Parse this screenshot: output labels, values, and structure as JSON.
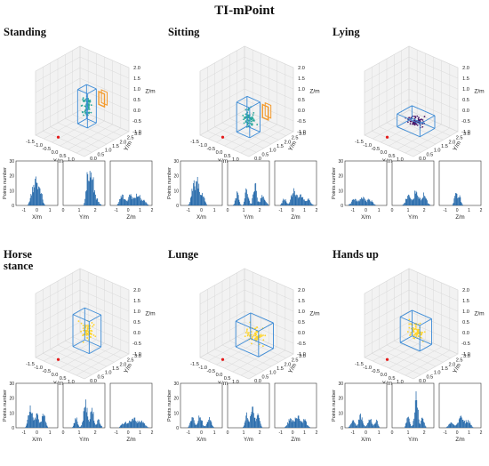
{
  "figure": {
    "title": "TI-mPoint"
  },
  "colors": {
    "person_box": "#3a8ad6",
    "sensor_box": "#f39a2c",
    "sensor": "#e51b1b",
    "histogram": "#1f65a8"
  },
  "axes_3d": {
    "xlabel": "X/m",
    "ylabel": "Y/m",
    "zlabel": "Z/m",
    "x_ticks": [
      "-1.5",
      "-1.0",
      "-0.5",
      "0.0",
      "0.5",
      "1.0",
      "1.5"
    ],
    "y_ticks": [
      "0.0",
      "0.5",
      "1.0",
      "1.5",
      "2.0",
      "2.5",
      "3.0"
    ],
    "z_ticks": [
      "-1.0",
      "-0.5",
      "0.0",
      "0.5",
      "1.0",
      "1.5",
      "2.0"
    ],
    "xlim": [
      -1.5,
      1.5
    ],
    "ylim": [
      0,
      3
    ],
    "zlim": [
      -1,
      2
    ]
  },
  "hist_axes": {
    "ylabel": "Points number",
    "ylim": [
      0,
      30
    ],
    "y_ticks": [
      "0",
      "10",
      "20",
      "30"
    ],
    "xlabels": [
      "X/m",
      "Y/m",
      "Z/m"
    ],
    "x_ticks": [
      [
        "-1",
        "0",
        "1"
      ],
      [
        "0",
        "1",
        "2"
      ],
      [
        "-1",
        "0",
        "1",
        "2"
      ]
    ],
    "x_tick_values": [
      [
        -1,
        0,
        1
      ],
      [
        0,
        1,
        2
      ],
      [
        -1,
        0,
        1,
        2
      ]
    ],
    "xlims": [
      [
        -1.6,
        1.6
      ],
      [
        0,
        2.6
      ],
      [
        -1.5,
        2
      ]
    ]
  },
  "chart_data": [
    {
      "type": "scatter",
      "title": "Standing",
      "point_color": "#26a69a",
      "body": {
        "center": [
          0.2,
          1.6,
          0.3
        ],
        "size": [
          0.6,
          0.6,
          1.6
        ]
      },
      "sensor_box": true,
      "hist": [
        {
          "peaks": [
            {
              "c": -0.35,
              "w": 0.15,
              "h": 12
            },
            {
              "c": -0.05,
              "w": 0.12,
              "h": 22
            },
            {
              "c": 0.25,
              "w": 0.15,
              "h": 14
            }
          ]
        },
        {
          "peaks": [
            {
              "c": 1.55,
              "w": 0.1,
              "h": 28
            },
            {
              "c": 1.8,
              "w": 0.1,
              "h": 24
            },
            {
              "c": 2.05,
              "w": 0.15,
              "h": 6
            }
          ]
        },
        {
          "peaks": [
            {
              "c": -0.5,
              "w": 0.2,
              "h": 8
            },
            {
              "c": 0.2,
              "w": 0.2,
              "h": 9
            },
            {
              "c": 0.8,
              "w": 0.2,
              "h": 9
            },
            {
              "c": 1.3,
              "w": 0.2,
              "h": 4
            }
          ]
        }
      ]
    },
    {
      "type": "scatter",
      "title": "Sitting",
      "point_color": "#26a69a",
      "body": {
        "center": [
          0.1,
          1.5,
          -0.2
        ],
        "size": [
          0.8,
          0.7,
          1.4
        ]
      },
      "sensor_box": true,
      "hist": [
        {
          "peaks": [
            {
              "c": -0.6,
              "w": 0.15,
              "h": 16
            },
            {
              "c": -0.3,
              "w": 0.12,
              "h": 20
            },
            {
              "c": 0.1,
              "w": 0.15,
              "h": 10
            }
          ]
        },
        {
          "peaks": [
            {
              "c": 0.6,
              "w": 0.1,
              "h": 10
            },
            {
              "c": 1.2,
              "w": 0.1,
              "h": 14
            },
            {
              "c": 1.7,
              "w": 0.1,
              "h": 18
            },
            {
              "c": 2.2,
              "w": 0.15,
              "h": 8
            }
          ]
        },
        {
          "peaks": [
            {
              "c": -0.7,
              "w": 0.15,
              "h": 6
            },
            {
              "c": 0.1,
              "w": 0.2,
              "h": 14
            },
            {
              "c": 0.7,
              "w": 0.2,
              "h": 8
            },
            {
              "c": 1.3,
              "w": 0.2,
              "h": 5
            }
          ]
        }
      ]
    },
    {
      "type": "scatter",
      "title": "Lying",
      "point_color": "#4b1a6b",
      "body": {
        "center": [
          0.2,
          1.6,
          -0.4
        ],
        "size": [
          1.4,
          1.0,
          0.6
        ]
      },
      "sensor_box": false,
      "hist": [
        {
          "peaks": [
            {
              "c": -0.9,
              "w": 0.2,
              "h": 5
            },
            {
              "c": -0.3,
              "w": 0.2,
              "h": 7
            },
            {
              "c": 0.3,
              "w": 0.2,
              "h": 5
            }
          ]
        },
        {
          "peaks": [
            {
              "c": 1.0,
              "w": 0.15,
              "h": 8
            },
            {
              "c": 1.5,
              "w": 0.15,
              "h": 12
            },
            {
              "c": 2.0,
              "w": 0.15,
              "h": 9
            }
          ]
        },
        {
          "peaks": [
            {
              "c": -0.1,
              "w": 0.12,
              "h": 11
            },
            {
              "c": 0.2,
              "w": 0.12,
              "h": 7
            }
          ]
        }
      ]
    },
    {
      "type": "scatter",
      "title": "Horse\nstance",
      "point_color": "#ffd42a",
      "body": {
        "center": [
          0.2,
          1.6,
          0.2
        ],
        "size": [
          1.0,
          0.8,
          1.5
        ]
      },
      "sensor_box": false,
      "hist": [
        {
          "peaks": [
            {
              "c": -0.5,
              "w": 0.15,
              "h": 16
            },
            {
              "c": 0.0,
              "w": 0.15,
              "h": 10
            },
            {
              "c": 0.5,
              "w": 0.15,
              "h": 11
            }
          ]
        },
        {
          "peaks": [
            {
              "c": 0.8,
              "w": 0.1,
              "h": 8
            },
            {
              "c": 1.4,
              "w": 0.12,
              "h": 20
            },
            {
              "c": 1.8,
              "w": 0.1,
              "h": 16
            },
            {
              "c": 2.2,
              "w": 0.12,
              "h": 6
            }
          ]
        },
        {
          "peaks": [
            {
              "c": -0.3,
              "w": 0.25,
              "h": 4
            },
            {
              "c": 0.4,
              "w": 0.25,
              "h": 8
            },
            {
              "c": 1.1,
              "w": 0.25,
              "h": 6
            }
          ]
        }
      ]
    },
    {
      "type": "scatter",
      "title": "Lunge",
      "point_color": "#ffd42a",
      "body": {
        "center": [
          0.3,
          1.7,
          0.0
        ],
        "size": [
          1.4,
          1.0,
          1.2
        ]
      },
      "sensor_box": false,
      "hist": [
        {
          "peaks": [
            {
              "c": -0.7,
              "w": 0.15,
              "h": 8
            },
            {
              "c": -0.1,
              "w": 0.15,
              "h": 10
            },
            {
              "c": 0.6,
              "w": 0.15,
              "h": 8
            }
          ]
        },
        {
          "peaks": [
            {
              "c": 1.2,
              "w": 0.1,
              "h": 12
            },
            {
              "c": 1.55,
              "w": 0.1,
              "h": 20
            },
            {
              "c": 1.9,
              "w": 0.1,
              "h": 12
            }
          ]
        },
        {
          "peaks": [
            {
              "c": -0.2,
              "w": 0.2,
              "h": 7
            },
            {
              "c": 0.4,
              "w": 0.2,
              "h": 10
            },
            {
              "c": 1.0,
              "w": 0.2,
              "h": 6
            }
          ]
        }
      ]
    },
    {
      "type": "scatter",
      "title": "Hands up",
      "point_color": "#ffd42a",
      "body": {
        "center": [
          0.2,
          1.6,
          0.2
        ],
        "size": [
          1.2,
          0.8,
          1.2
        ]
      },
      "sensor_box": false,
      "hist": [
        {
          "peaks": [
            {
              "c": -1.0,
              "w": 0.15,
              "h": 6
            },
            {
              "c": -0.4,
              "w": 0.15,
              "h": 10
            },
            {
              "c": 0.3,
              "w": 0.15,
              "h": 8
            },
            {
              "c": 0.8,
              "w": 0.12,
              "h": 6
            }
          ]
        },
        {
          "peaks": [
            {
              "c": 1.0,
              "w": 0.1,
              "h": 10
            },
            {
              "c": 1.5,
              "w": 0.1,
              "h": 27
            },
            {
              "c": 1.9,
              "w": 0.1,
              "h": 8
            }
          ]
        },
        {
          "peaks": [
            {
              "c": -0.5,
              "w": 0.2,
              "h": 4
            },
            {
              "c": 0.3,
              "w": 0.2,
              "h": 10
            },
            {
              "c": 0.9,
              "w": 0.2,
              "h": 6
            }
          ]
        }
      ]
    }
  ]
}
